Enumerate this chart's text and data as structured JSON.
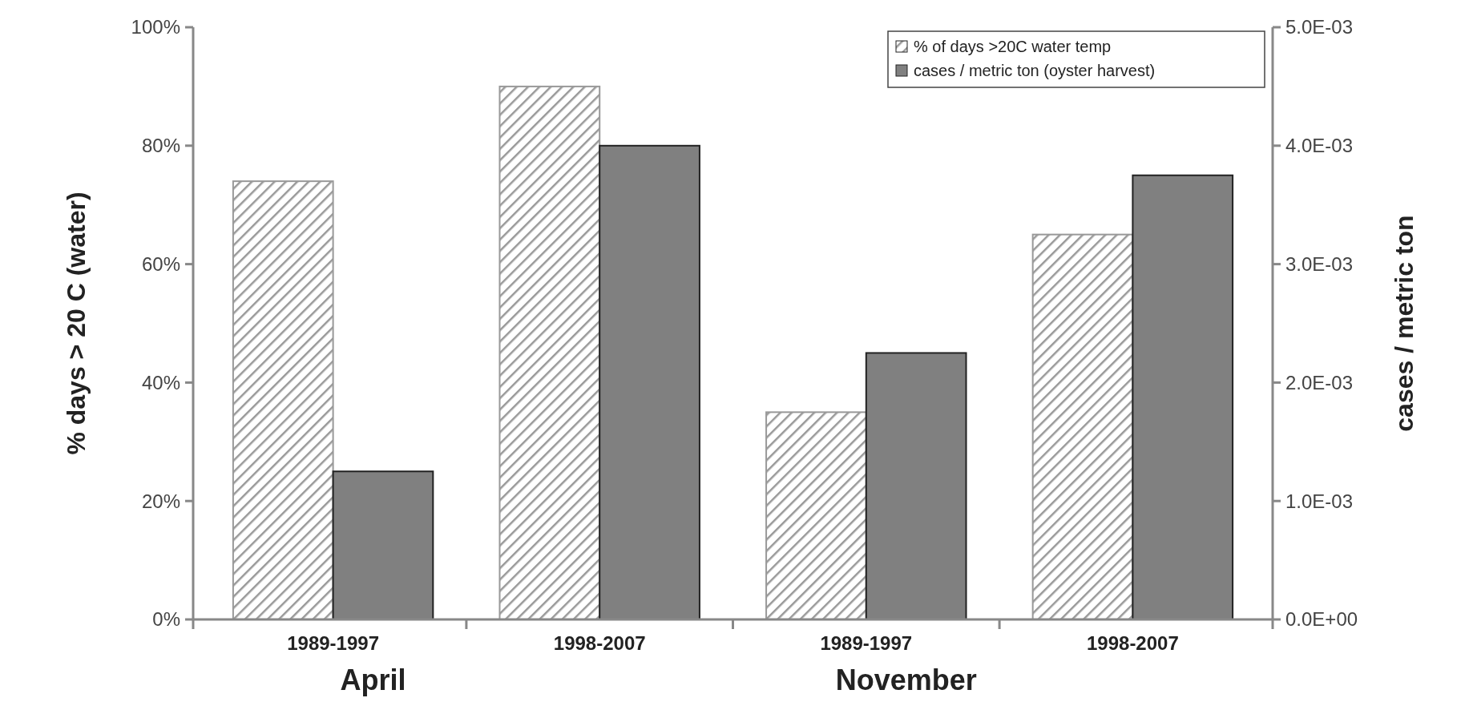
{
  "chart_data": {
    "type": "bar",
    "categories": [
      "1989-1997",
      "1998-2007",
      "1989-1997",
      "1998-2007"
    ],
    "series": [
      {
        "name": "% of days >20C water temp",
        "color": "#999999",
        "values": [
          74,
          90,
          35,
          65
        ]
      },
      {
        "name": "cases / metric ton (oyster harvest)",
        "color": "#808080",
        "values": [
          0.00125,
          0.004,
          0.00225,
          0.00375
        ],
        "axis": "y2"
      }
    ],
    "ylabel": "% days > 20 C (water)",
    "y2label": "cases / metric ton",
    "ylim": [
      0,
      100
    ],
    "yticks": [
      {
        "value": 0,
        "label": "0%"
      },
      {
        "value": 20,
        "label": "20%"
      },
      {
        "value": 40,
        "label": "40%"
      },
      {
        "value": 60,
        "label": "60%"
      },
      {
        "value": 80,
        "label": "80%"
      },
      {
        "value": 100,
        "label": "100%"
      }
    ],
    "y2lim": [
      0,
      0.005
    ],
    "y2ticks": [
      {
        "value": 0,
        "label": "0.0E+00"
      },
      {
        "value": 0.001,
        "label": "1.0E-03"
      },
      {
        "value": 0.002,
        "label": "2.0E-03"
      },
      {
        "value": 0.003,
        "label": "3.0E-03"
      },
      {
        "value": 0.004,
        "label": "4.0E-03"
      },
      {
        "value": 0.005,
        "label": "5.0E-03"
      }
    ],
    "annotations": [
      "April",
      "November"
    ],
    "legend": "top right",
    "grid": false
  }
}
